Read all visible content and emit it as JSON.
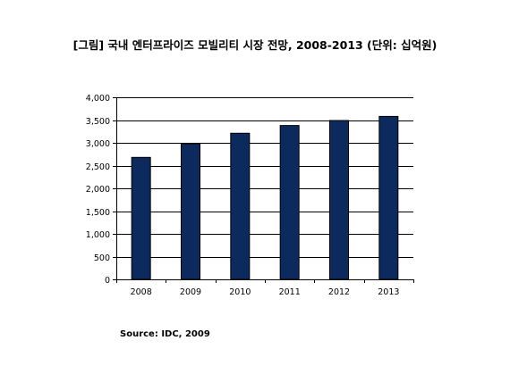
{
  "colors": {
    "bar_fill": "#0d2a5e",
    "bar_stroke": "#000000",
    "grid": "#000000",
    "text": "#000000"
  },
  "source": "Source: IDC, 2009",
  "chart_data": {
    "type": "bar",
    "title": "[그림] 국내 엔터프라이즈 모빌리티 시장 전망, 2008-2013 (단위: 십억원)",
    "xlabel": "",
    "ylabel": "",
    "categories": [
      "2008",
      "2009",
      "2010",
      "2011",
      "2012",
      "2013"
    ],
    "values": [
      2680,
      2980,
      3210,
      3380,
      3490,
      3580
    ],
    "ylim": [
      0,
      4000
    ],
    "yticks": [
      0,
      500,
      1000,
      1500,
      2000,
      2500,
      3000,
      3500,
      4000
    ],
    "ytick_labels": [
      "0",
      "500",
      "1,000",
      "1,500",
      "2,000",
      "2,500",
      "3,000",
      "3,500",
      "4,000"
    ],
    "grid": true,
    "legend": "none"
  }
}
